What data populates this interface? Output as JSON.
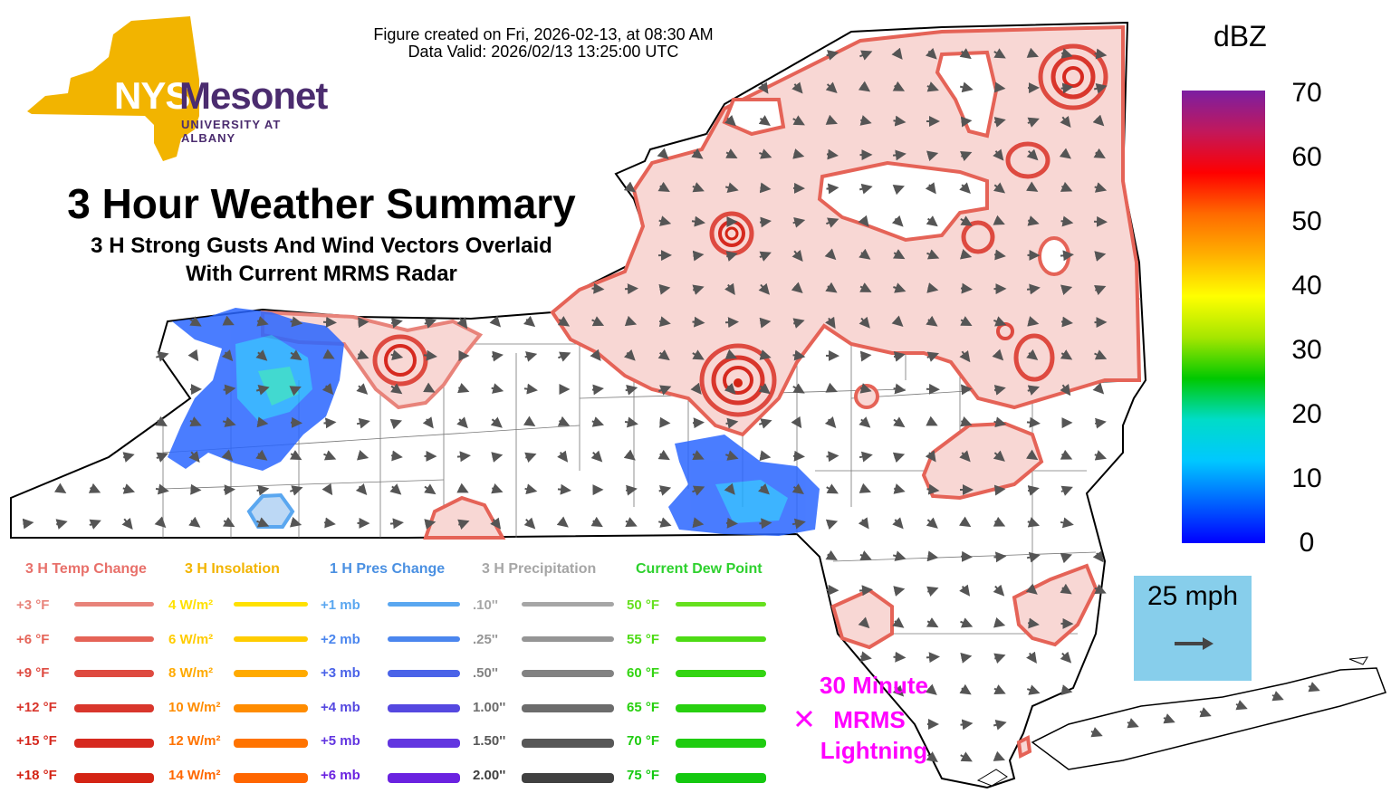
{
  "header": {
    "created": "Figure created on Fri, 2026-02-13, at 08:30 AM",
    "valid": "Data Valid: 2026/02/13 13:25:00 UTC"
  },
  "logo": {
    "nys": "NYS",
    "mesonet": "Mesonet",
    "university": "UNIVERSITY AT ALBANY"
  },
  "title": {
    "main": "3 Hour Weather Summary",
    "sub1": "3 H Strong Gusts And Wind Vectors Overlaid",
    "sub2": "With Current MRMS Radar"
  },
  "colorbar": {
    "unit": "dBZ",
    "ticks": [
      "70",
      "60",
      "50",
      "40",
      "30",
      "20",
      "10",
      "0"
    ],
    "colors": [
      "#7b1fa2",
      "#c2185b",
      "#ff0000",
      "#ff6a00",
      "#ffb000",
      "#ffff00",
      "#a6e600",
      "#00c800",
      "#00dcc8",
      "#00c8ff",
      "#0064ff",
      "#0000ff"
    ]
  },
  "reference_vector": {
    "label": "25 mph"
  },
  "lightning": {
    "line1": "30 Minute",
    "line2": "MRMS",
    "line3": "Lightning",
    "marker": "×"
  },
  "legend": {
    "columns": [
      {
        "title": "3 H Temp Change",
        "title_color": "#e8706a",
        "entries": [
          {
            "label": "+3 °F",
            "color": "#e8837a"
          },
          {
            "label": "+6 °F",
            "color": "#e56357"
          },
          {
            "label": "+9 °F",
            "color": "#de4a40"
          },
          {
            "label": "+12 °F",
            "color": "#d9362c"
          },
          {
            "label": "+15 °F",
            "color": "#d6291f"
          },
          {
            "label": "+18 °F",
            "color": "#d42414"
          }
        ]
      },
      {
        "title": "3 H Insolation",
        "title_color": "#f2b400",
        "entries": [
          {
            "label": "4 W/m²",
            "color": "#ffe100"
          },
          {
            "label": "6 W/m²",
            "color": "#ffcc00"
          },
          {
            "label": "8 W/m²",
            "color": "#ffaa00"
          },
          {
            "label": "10 W/m²",
            "color": "#ff8c00"
          },
          {
            "label": "12 W/m²",
            "color": "#ff7300"
          },
          {
            "label": "14 W/m²",
            "color": "#ff6600"
          }
        ]
      },
      {
        "title": "1 H Pres Change",
        "title_color": "#4a90e2",
        "entries": [
          {
            "label": "+1 mb",
            "color": "#5aa7f0"
          },
          {
            "label": "+2 mb",
            "color": "#4b86ee"
          },
          {
            "label": "+3 mb",
            "color": "#4a63e8"
          },
          {
            "label": "+4 mb",
            "color": "#5548e0"
          },
          {
            "label": "+5 mb",
            "color": "#6236e0"
          },
          {
            "label": "+6 mb",
            "color": "#6a22e0"
          }
        ]
      },
      {
        "title": "3 H Precipitation",
        "title_color": "#a6a6a6",
        "entries": [
          {
            "label": ".10''",
            "color": "#a6a6a6"
          },
          {
            "label": ".25''",
            "color": "#959595"
          },
          {
            "label": ".50''",
            "color": "#828282"
          },
          {
            "label": "1.00''",
            "color": "#6c6c6c"
          },
          {
            "label": "1.50''",
            "color": "#575757"
          },
          {
            "label": "2.00''",
            "color": "#404040"
          }
        ]
      },
      {
        "title": "Current Dew Point",
        "title_color": "#2ed12e",
        "entries": [
          {
            "label": "50 °F",
            "color": "#66e01e"
          },
          {
            "label": "55 °F",
            "color": "#4ddb14"
          },
          {
            "label": "60 °F",
            "color": "#33d412"
          },
          {
            "label": "65 °F",
            "color": "#28d010"
          },
          {
            "label": "70 °F",
            "color": "#1fcc10"
          },
          {
            "label": "75 °F",
            "color": "#14c810"
          }
        ]
      }
    ]
  },
  "colors": {
    "temp_fill": "#f8d7d4",
    "temp_line_light": "#e8837a",
    "temp_line_dark": "#d6291f",
    "pres_line": "#5aa7f0",
    "arrow": "#555555"
  }
}
